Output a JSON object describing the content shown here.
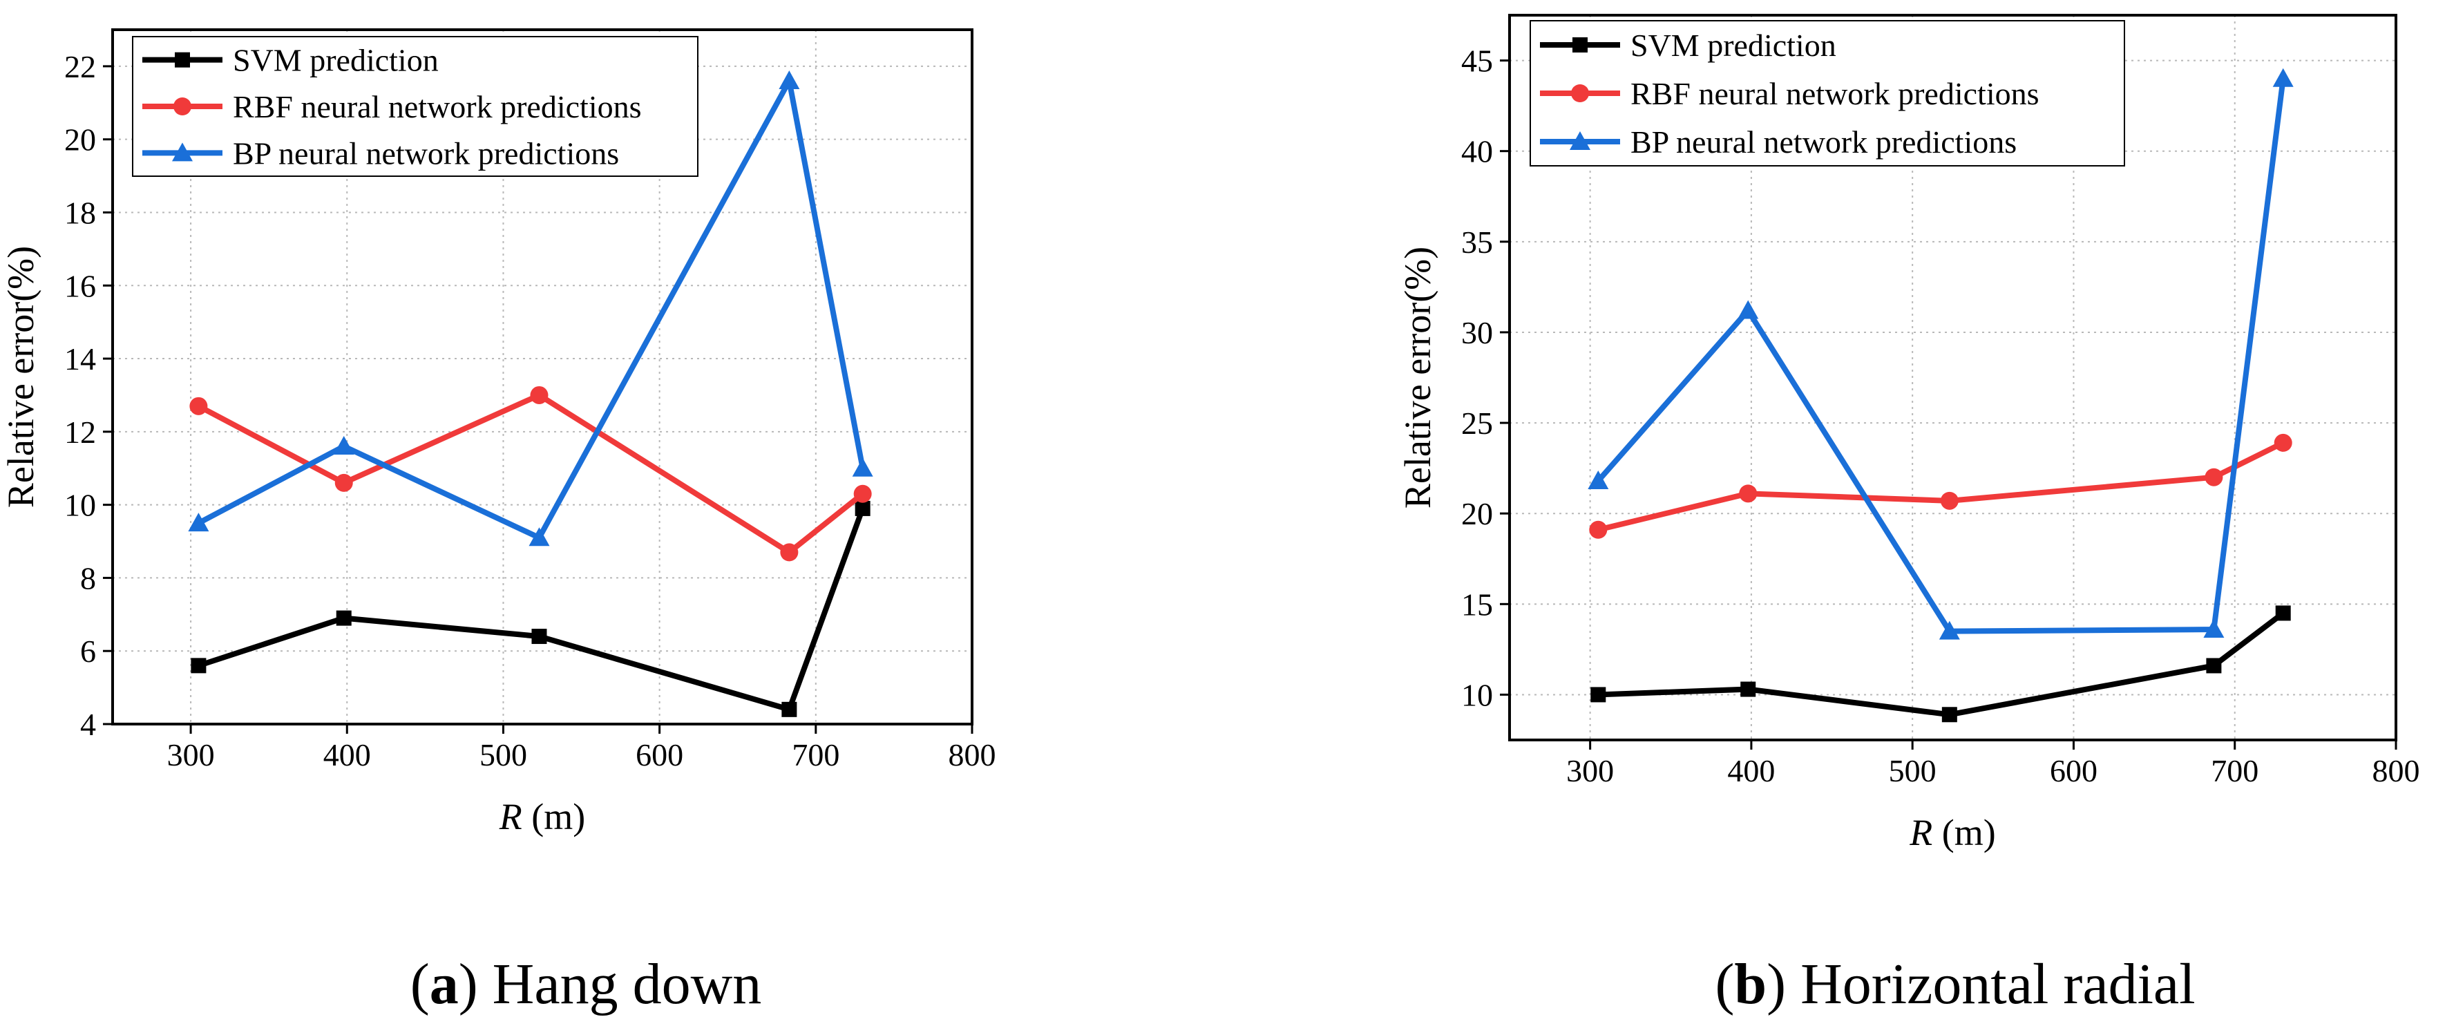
{
  "chart_data": [
    {
      "type": "line",
      "caption_letter": "a",
      "caption_text": " Hang down",
      "xlabel_var": "R",
      "xlabel_unit": " (m)",
      "ylabel": "Relative error(%)",
      "xlim": [
        250,
        800
      ],
      "ylim": [
        4,
        23
      ],
      "xticks": [
        300,
        400,
        500,
        600,
        700,
        800
      ],
      "yticks": [
        4,
        6,
        8,
        10,
        12,
        14,
        16,
        18,
        20,
        22
      ],
      "legend_position": "top-left",
      "series": [
        {
          "name": "SVM prediction",
          "color": "#000000",
          "marker": "square",
          "x": [
            305,
            398,
            523,
            683,
            730
          ],
          "y": [
            5.6,
            6.9,
            6.4,
            4.4,
            9.9
          ]
        },
        {
          "name": "RBF neural network predictions",
          "color": "#f03a3a",
          "marker": "circle",
          "x": [
            305,
            398,
            523,
            683,
            730
          ],
          "y": [
            12.7,
            10.6,
            13.0,
            8.7,
            10.3
          ]
        },
        {
          "name": "BP neural network predictions",
          "color": "#1a6fd8",
          "marker": "triangle",
          "x": [
            305,
            398,
            523,
            683,
            730
          ],
          "y": [
            9.5,
            11.6,
            9.1,
            21.6,
            11.0
          ]
        }
      ]
    },
    {
      "type": "line",
      "caption_letter": "b",
      "caption_text": " Horizontal radial",
      "xlabel_var": "R",
      "xlabel_unit": " (m)",
      "ylabel": "Relative error(%)",
      "xlim": [
        250,
        800
      ],
      "ylim": [
        7.5,
        47.5
      ],
      "xticks": [
        300,
        400,
        500,
        600,
        700,
        800
      ],
      "yticks": [
        10,
        15,
        20,
        25,
        30,
        35,
        40,
        45
      ],
      "legend_position": "top-left",
      "series": [
        {
          "name": "SVM prediction",
          "color": "#000000",
          "marker": "square",
          "x": [
            305,
            398,
            523,
            687,
            730
          ],
          "y": [
            10.0,
            10.3,
            8.9,
            11.6,
            14.5
          ]
        },
        {
          "name": "RBF neural network predictions",
          "color": "#f03a3a",
          "marker": "circle",
          "x": [
            305,
            398,
            523,
            687,
            730
          ],
          "y": [
            19.1,
            21.1,
            20.7,
            22.0,
            23.9
          ]
        },
        {
          "name": "BP neural network predictions",
          "color": "#1a6fd8",
          "marker": "triangle",
          "x": [
            305,
            398,
            523,
            687,
            730
          ],
          "y": [
            21.8,
            31.2,
            13.5,
            13.6,
            44.0
          ]
        }
      ]
    }
  ]
}
